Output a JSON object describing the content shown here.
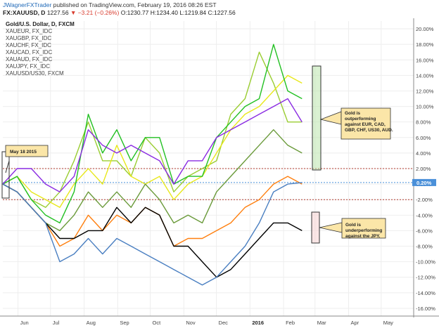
{
  "header": {
    "author": "JWagnerFXTrader",
    "published": "published on TradingView.com, February 19, 2016 08:26 EST",
    "symbol": "FX:XAUUSD, D",
    "last": "1227.56",
    "change": "▼ −3.21 (−0.26%)",
    "ohlc": "O:1230.77 H:1234.40 L:1219.84 C:1227.56",
    "close_value": "1227.56"
  },
  "chart_data": {
    "type": "line",
    "title": "Gold/U.S. Dollar, D, FXCM",
    "x_tick_labels": [
      "Jun",
      "Jul",
      "Aug",
      "Sep",
      "Oct",
      "Nov",
      "Dec",
      "2016",
      "Feb",
      "Mar",
      "Apr",
      "May"
    ],
    "y_tick_labels": [
      "20.00%",
      "18.00%",
      "16.00%",
      "14.00%",
      "12.00%",
      "10.00%",
      "8.00%",
      "6.00%",
      "4.00%",
      "2.00%",
      "0.00%",
      "-2.00%",
      "-4.00%",
      "-6.00%",
      "-8.00%",
      "-10.00%",
      "-12.00%",
      "-14.00%",
      "-16.00%"
    ],
    "ylim": [
      -17,
      21
    ],
    "y_unit": "%",
    "grid": true,
    "x_range": [
      "2015-05-18",
      "2016-05-31"
    ],
    "series": [
      {
        "name": "XAUEUR, FX_IDC",
        "color": "#9acd32",
        "values": [
          0,
          1,
          -2,
          -3,
          -1,
          3,
          8,
          3,
          3,
          1,
          6,
          4,
          -1,
          1,
          2,
          3,
          9,
          11,
          17,
          13,
          8,
          8
        ]
      },
      {
        "name": "XAUGBP, FX_IDC",
        "color": "#e8e81c",
        "values": [
          0,
          1,
          -1,
          -2,
          -3,
          0,
          2,
          0,
          5,
          1,
          0,
          1,
          -2,
          0,
          1,
          4,
          7,
          9,
          10,
          12,
          14,
          13
        ]
      },
      {
        "name": "XAUCHF, FX_IDC",
        "color": "#22c022",
        "values": [
          0,
          1,
          -2,
          -4,
          -5,
          -1,
          9,
          4,
          7,
          3,
          6,
          6,
          0,
          1,
          1,
          6,
          8,
          10,
          11,
          18,
          12,
          11
        ]
      },
      {
        "name": "XAUCAD, FX_IDC",
        "color": "#6a9a3a",
        "values": [
          0,
          -1,
          -3,
          -5,
          -6,
          -4,
          -1,
          -3,
          -1,
          -3,
          0,
          -2,
          -5,
          -4,
          -5,
          -1,
          1,
          3,
          5,
          7,
          5,
          4
        ]
      },
      {
        "name": "XAUAUD, FX_IDC",
        "color": "#8a2be2",
        "values": [
          0,
          2,
          2,
          0,
          -1,
          1,
          7,
          5,
          4,
          5,
          4,
          3,
          0,
          3,
          3,
          6,
          7,
          8,
          9,
          10,
          11,
          8
        ]
      },
      {
        "name": "XAUJPY, FX_IDC",
        "color": "#ff7f0e",
        "values": [
          0,
          -1,
          -3,
          -5,
          -8,
          -7,
          -4,
          -6,
          -4,
          -5,
          -3,
          -4,
          -8,
          -7,
          -7,
          -6,
          -5,
          -3,
          -2,
          0,
          1,
          0
        ]
      },
      {
        "name": "XAUUSD/US30, FXCM",
        "color": "#000000",
        "values": [
          0,
          -1,
          -3,
          -5,
          -7,
          -7,
          -6,
          -6,
          -3,
          -5,
          -3,
          -4,
          -8,
          -8,
          -10,
          -12,
          -11,
          -9,
          -7,
          -5,
          -5,
          -6
        ]
      },
      {
        "name": "XAUUSD",
        "color": "#4a7fc1",
        "values": [
          0,
          -1,
          -3,
          -5,
          -10,
          -9,
          -7,
          -9,
          -7,
          -8,
          -9,
          -10,
          -11,
          -12,
          -13,
          -12,
          -10,
          -8,
          -5,
          -1,
          0,
          0.2
        ]
      }
    ],
    "reference_lines": [
      {
        "y": 2,
        "color": "#b03a2e"
      },
      {
        "y": -2,
        "color": "#b03a2e"
      },
      {
        "y": 0.2,
        "color": "#4a90d9"
      }
    ],
    "last_value_label": "0.20%",
    "annotations": [
      {
        "text": "May 18 2015",
        "near": "2015-05-18"
      },
      {
        "text": "Gold is outperforming against EUR, CAD, GBP, CHF, US30, AUD.",
        "near": "Feb peak"
      },
      {
        "text": "Gold is underperforming against the JPY.",
        "near": "Feb low"
      }
    ]
  }
}
